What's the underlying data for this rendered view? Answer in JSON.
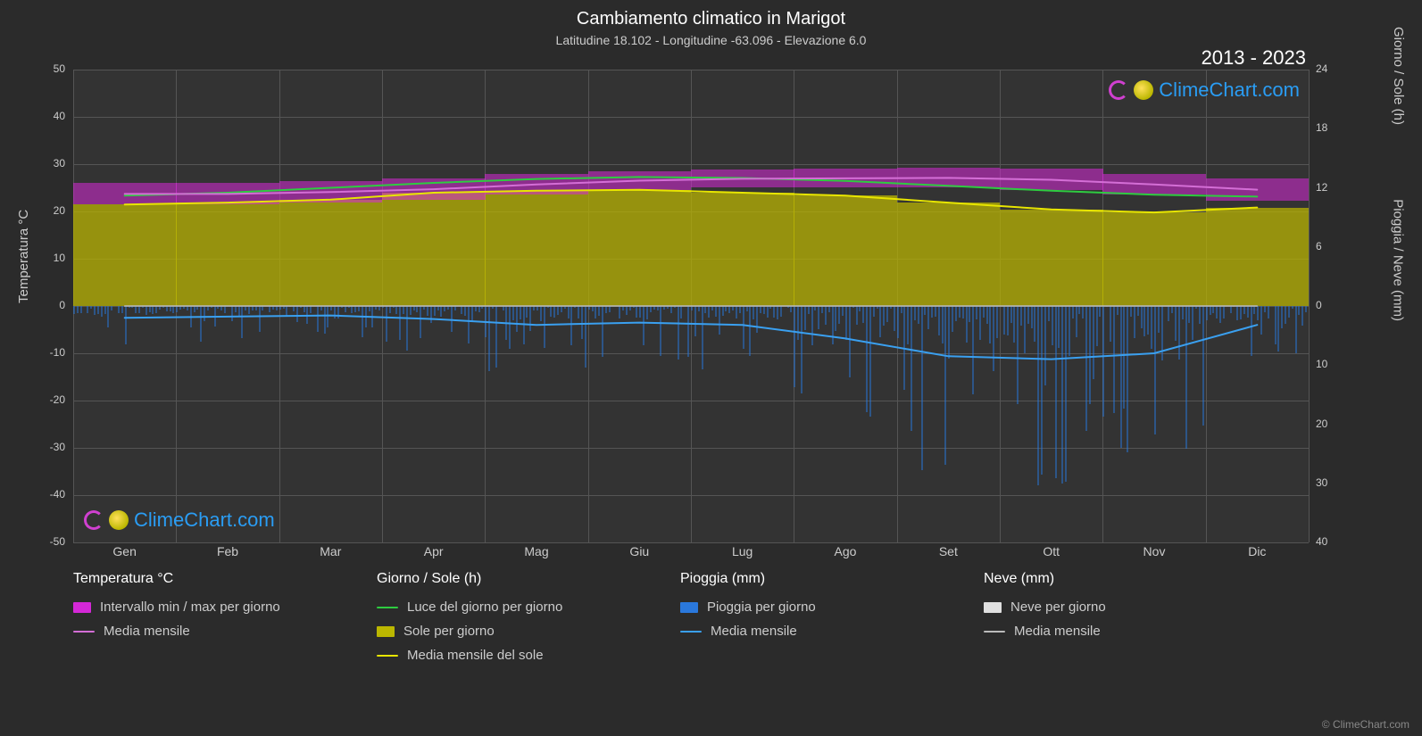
{
  "title": "Cambiamento climatico in Marigot",
  "subtitle": "Latitudine 18.102 - Longitudine -63.096 - Elevazione 6.0",
  "years_label": "2013 - 2023",
  "brand": "ClimeChart.com",
  "copyright": "© ClimeChart.com",
  "colors": {
    "bg": "#2b2b2b",
    "plot_bg": "#333333",
    "grid": "#555555",
    "text": "#cccccc",
    "temp_range": "#d428d7",
    "temp_mean": "#d46ed6",
    "daylight": "#2ecc40",
    "sun_fill": "#bbb700",
    "sun_line": "#e8e600",
    "rain_bar": "#2a78dc",
    "rain_line": "#3aa0f0",
    "snow_bar": "#e0e0e0",
    "snow_line": "#bbbbbb",
    "brand_link": "#2a9df4"
  },
  "left_axis": {
    "title": "Temperatura °C",
    "min": -50,
    "max": 50,
    "ticks": [
      50,
      40,
      30,
      20,
      10,
      0,
      -10,
      -20,
      -30,
      -40,
      -50
    ]
  },
  "right_axis_top": {
    "title": "Giorno / Sole (h)",
    "min": 0,
    "max": 24,
    "ticks": [
      24,
      18,
      12,
      6,
      0
    ]
  },
  "right_axis_bottom": {
    "title": "Pioggia / Neve (mm)",
    "min": 0,
    "max": 40,
    "ticks": [
      0,
      10,
      20,
      30,
      40
    ]
  },
  "x_axis": {
    "labels": [
      "Gen",
      "Feb",
      "Mar",
      "Apr",
      "Mag",
      "Giu",
      "Lug",
      "Ago",
      "Set",
      "Ott",
      "Nov",
      "Dic"
    ]
  },
  "series": {
    "temp_min": [
      21.5,
      21.5,
      21.8,
      22.5,
      23.5,
      24.5,
      25.0,
      25.0,
      25.0,
      24.5,
      23.5,
      22.2
    ],
    "temp_max": [
      26.0,
      26.0,
      26.5,
      27.0,
      28.0,
      28.5,
      28.8,
      29.0,
      29.2,
      29.0,
      28.0,
      27.0
    ],
    "temp_mean": [
      23.7,
      23.7,
      24.1,
      24.7,
      25.7,
      26.5,
      26.9,
      27.0,
      27.1,
      26.7,
      25.7,
      24.6
    ],
    "daylight_h": [
      11.2,
      11.5,
      12.0,
      12.5,
      12.9,
      13.1,
      13.0,
      12.7,
      12.2,
      11.7,
      11.3,
      11.1
    ],
    "sun_h": [
      10.3,
      10.5,
      10.8,
      11.5,
      11.7,
      11.8,
      11.5,
      11.2,
      10.5,
      9.8,
      9.5,
      10.0
    ],
    "rain_mean_mm": [
      2.0,
      1.8,
      1.6,
      2.2,
      3.2,
      2.8,
      3.2,
      5.5,
      8.5,
      9.0,
      8.0,
      3.2
    ],
    "snow_mean_mm": [
      0,
      0,
      0,
      0,
      0,
      0,
      0,
      0,
      0,
      0,
      0,
      0
    ]
  },
  "legend": {
    "temp_head": "Temperatura °C",
    "temp_range_label": "Intervallo min / max per giorno",
    "temp_mean_label": "Media mensile",
    "day_head": "Giorno / Sole (h)",
    "daylight_label": "Luce del giorno per giorno",
    "sun_fill_label": "Sole per giorno",
    "sun_mean_label": "Media mensile del sole",
    "rain_head": "Pioggia (mm)",
    "rain_day_label": "Pioggia per giorno",
    "rain_mean_label": "Media mensile",
    "snow_head": "Neve (mm)",
    "snow_day_label": "Neve per giorno",
    "snow_mean_label": "Media mensile"
  }
}
